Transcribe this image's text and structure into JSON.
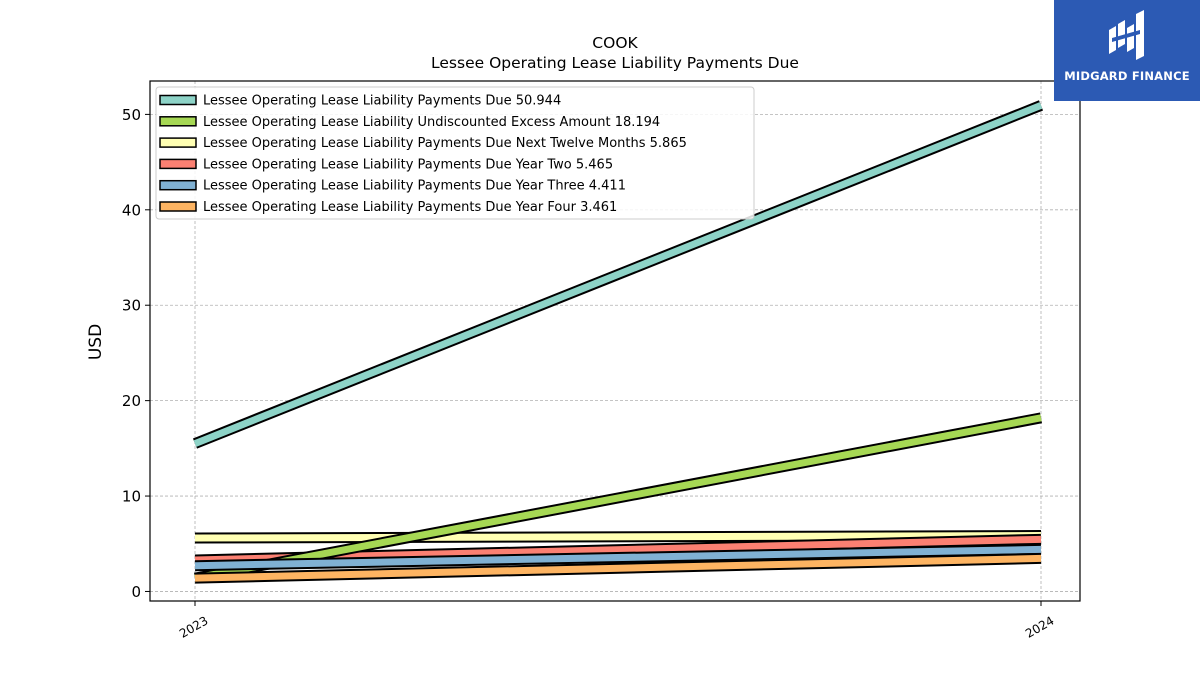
{
  "chart_data": {
    "type": "line",
    "title_line1": "COOK",
    "title_line2": "Lessee Operating Lease Liability Payments Due",
    "xlabel": "",
    "ylabel": "USD",
    "categories": [
      "2023",
      "2024"
    ],
    "ylim": [
      -1,
      53.5
    ],
    "yticks": [
      "0",
      "10",
      "20",
      "30",
      "40",
      "50"
    ],
    "grid": true,
    "legend_position": "upper-left",
    "series": [
      {
        "name": "Lessee Operating Lease Liability Payments Due  50.944",
        "values": [
          15.5,
          50.944
        ],
        "color": "#8dd3c7"
      },
      {
        "name": "Lessee Operating Lease Liability Undiscounted Excess Amount  18.194",
        "values": [
          1.4,
          18.194
        ],
        "color": "#a6d854"
      },
      {
        "name": "Lessee Operating Lease Liability Payments Due Next Twelve Months  5.865",
        "values": [
          5.6,
          5.865
        ],
        "color": "#ffffb3"
      },
      {
        "name": "Lessee Operating Lease Liability Payments Due Year Two  5.465",
        "values": [
          3.3,
          5.465
        ],
        "color": "#fb8072"
      },
      {
        "name": "Lessee Operating Lease Liability Payments Due Year Three  4.411",
        "values": [
          2.7,
          4.411
        ],
        "color": "#80b1d3"
      },
      {
        "name": "Lessee Operating Lease Liability Payments Due Year Four  3.461",
        "values": [
          1.4,
          3.461
        ],
        "color": "#fdb462"
      }
    ]
  },
  "logo": {
    "text": "MIDGARD FINANCE",
    "icon": "midgard-logo-icon",
    "background": "#2c5ab4"
  }
}
